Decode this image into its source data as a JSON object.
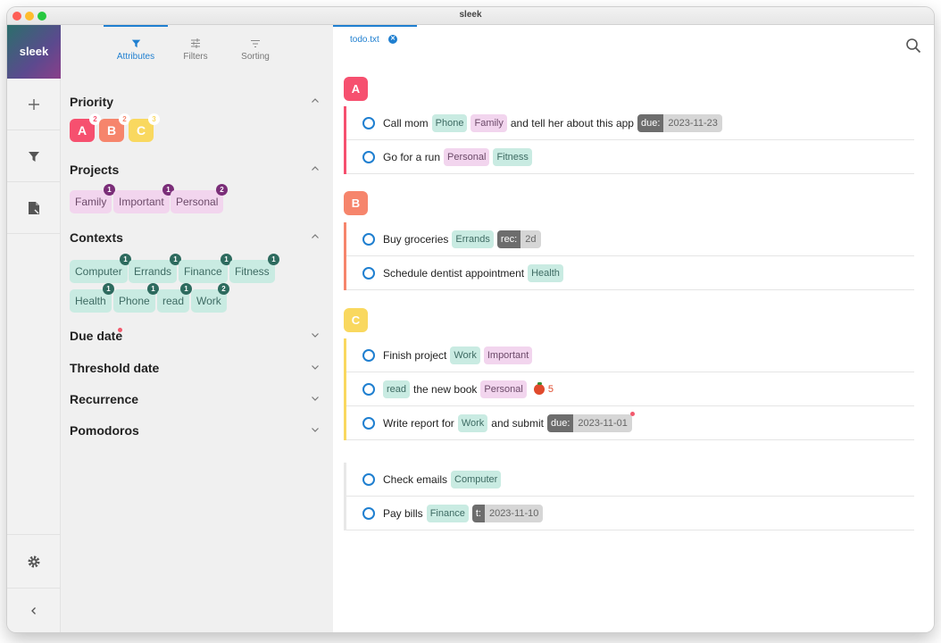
{
  "window": {
    "title": "sleek"
  },
  "rail": {
    "brand": "sleek"
  },
  "drawer": {
    "tabs": [
      {
        "label": "Attributes",
        "icon": "filter-icon",
        "active": true
      },
      {
        "label": "Filters",
        "icon": "sliders-icon"
      },
      {
        "label": "Sorting",
        "icon": "sort-icon"
      }
    ],
    "priority": {
      "title": "Priority",
      "items": [
        {
          "label": "A",
          "count": "2",
          "color": "#f6506f"
        },
        {
          "label": "B",
          "count": "2",
          "color": "#f6856c"
        },
        {
          "label": "C",
          "count": "3",
          "color": "#f9d85f"
        }
      ]
    },
    "projects": {
      "title": "Projects",
      "items": [
        {
          "label": "Family",
          "count": "1"
        },
        {
          "label": "Important",
          "count": "1"
        },
        {
          "label": "Personal",
          "count": "2"
        }
      ]
    },
    "contexts": {
      "title": "Contexts",
      "items": [
        {
          "label": "Computer",
          "count": "1"
        },
        {
          "label": "Errands",
          "count": "1"
        },
        {
          "label": "Finance",
          "count": "1"
        },
        {
          "label": "Fitness",
          "count": "1"
        },
        {
          "label": "Health",
          "count": "1"
        },
        {
          "label": "Phone",
          "count": "1"
        },
        {
          "label": "read",
          "count": "1"
        },
        {
          "label": "Work",
          "count": "2"
        }
      ]
    },
    "due_date": {
      "title": "Due date"
    },
    "threshold_date": {
      "title": "Threshold date"
    },
    "recurrence": {
      "title": "Recurrence"
    },
    "pomodoros": {
      "title": "Pomodoros"
    }
  },
  "main": {
    "file_tab": "todo.txt",
    "groups": [
      {
        "label": "A",
        "color": "#f6506f",
        "tasks": [
          {
            "text1": "Call mom",
            "tag1": "Phone",
            "tag2": "Family",
            "text2": "and tell her about this app",
            "due_key": "due:",
            "due_val": "2023-11-23"
          },
          {
            "text1": "Go for a run",
            "tag1": "Personal",
            "tag2": "Fitness"
          }
        ]
      },
      {
        "label": "B",
        "color": "#f6856c",
        "tasks": [
          {
            "text1": "Buy groceries",
            "tag1": "Errands",
            "rec_key": "rec:",
            "rec_val": "2d"
          },
          {
            "text1": "Schedule dentist appointment",
            "tag1": "Health"
          }
        ]
      },
      {
        "label": "C",
        "color": "#f9d85f",
        "tasks": [
          {
            "text1": "Finish project",
            "tag1": "Work",
            "tag2": "Important"
          },
          {
            "tag1": "read",
            "text1": "the new book",
            "tag2": "Personal",
            "pomodoros": "5"
          },
          {
            "text1": "Write report for",
            "tag1": "Work",
            "text2": "and submit",
            "due_key": "due:",
            "due_val": "2023-11-01"
          }
        ]
      },
      {
        "label": "",
        "tasks": [
          {
            "text1": "Check emails",
            "tag1": "Computer"
          },
          {
            "text1": "Pay bills",
            "tag1": "Finance",
            "t_key": "t:",
            "t_val": "2023-11-10"
          }
        ]
      }
    ]
  }
}
